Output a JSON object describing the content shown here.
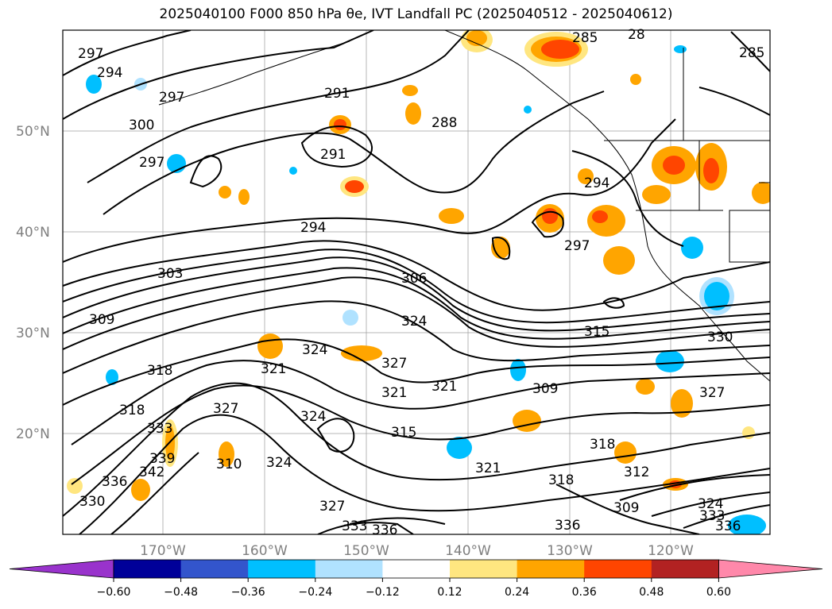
{
  "title": "2025040100 F000 850 hPa θe, IVT Landfall PC (2025040512 - 2025040612)",
  "lat_labels": [
    "50°N",
    "40°N",
    "30°N",
    "20°N"
  ],
  "lon_labels": [
    "170°W",
    "160°W",
    "150°W",
    "140°W",
    "130°W",
    "120°W"
  ],
  "contour_labels": [
    "297",
    "294",
    "297",
    "300",
    "297",
    "291",
    "288",
    "285",
    "28",
    "285",
    "291",
    "294",
    "294",
    "297",
    "303",
    "306",
    "309",
    "324",
    "315",
    "318",
    "318",
    "321",
    "324",
    "327",
    "321",
    "321",
    "309",
    "333",
    "327",
    "324",
    "315",
    "342",
    "339",
    "336",
    "330",
    "324",
    "310",
    "333",
    "336",
    "327",
    "318",
    "321",
    "318",
    "312",
    "309",
    "336",
    "333",
    "336",
    "324",
    "327",
    "330"
  ],
  "colorbar": {
    "ticks": [
      "−0.60",
      "−0.48",
      "−0.36",
      "−0.24",
      "−0.12",
      "0.12",
      "0.24",
      "0.36",
      "0.48",
      "0.60"
    ],
    "colors": [
      "#9933cc",
      "#000099",
      "#3355cc",
      "#00bfff",
      "#b0e2ff",
      "#ffffff",
      "#ffe680",
      "#ffa500",
      "#ff4500",
      "#b22222",
      "#ff88aa"
    ]
  }
}
